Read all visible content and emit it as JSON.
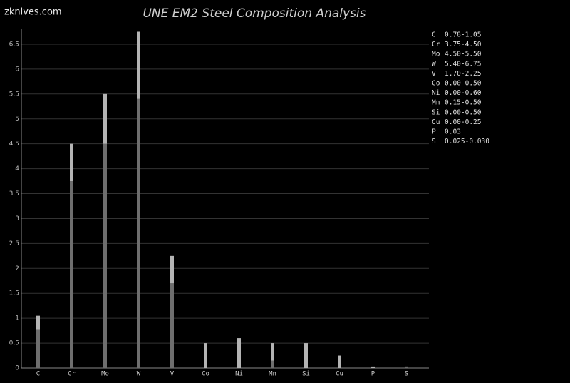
{
  "brand": "zknives.com",
  "chart_data": {
    "type": "range-bar",
    "title": "UNE EM2 Steel Composition Analysis",
    "categories": [
      "C",
      "Cr",
      "Mo",
      "W",
      "V",
      "Co",
      "Ni",
      "Mn",
      "Si",
      "Cu",
      "P",
      "S"
    ],
    "min": [
      0.78,
      3.75,
      4.5,
      5.4,
      1.7,
      0,
      0,
      0.15,
      0,
      0,
      null,
      0.025
    ],
    "max": [
      1.05,
      4.5,
      5.5,
      6.75,
      2.25,
      0.5,
      0.6,
      0.5,
      0.5,
      0.25,
      0.03,
      0.03
    ],
    "ranges": [
      "0.78-1.05",
      "3.75-4.50",
      "4.50-5.50",
      "5.40-6.75",
      "1.70-2.25",
      "0.00-0.50",
      "0.00-0.60",
      "0.15-0.50",
      "0.00-0.50",
      "0.00-0.25",
      "0.03",
      "0.025-0.030"
    ],
    "min_color": "#6e6e6e",
    "max_color": "#b4b4b4",
    "ylim": [
      0,
      6.8
    ],
    "yticks": [
      0,
      0.5,
      1,
      1.5,
      2,
      2.5,
      3,
      3.5,
      4,
      4.5,
      5,
      5.5,
      6,
      6.5
    ],
    "grid": true
  }
}
